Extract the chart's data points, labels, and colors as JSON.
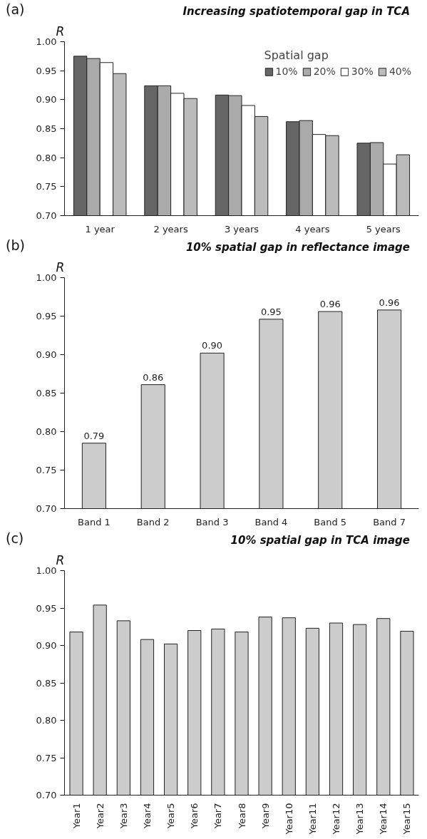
{
  "chart_data": [
    {
      "type": "bar",
      "title": "Increasing spatiotemporal gap in TCA",
      "ylabel": "R",
      "annotations": [
        "(a)"
      ],
      "legend_title": "Spatial gap",
      "legend": "top right",
      "categories": [
        "1 year",
        "2 years",
        "3 years",
        "4 years",
        "5 years"
      ],
      "series": [
        {
          "name": "10%",
          "color": "#666666",
          "values": [
            0.975,
            0.924,
            0.908,
            0.862,
            0.825
          ]
        },
        {
          "name": "20%",
          "color": "#aaaaaa",
          "values": [
            0.971,
            0.924,
            0.907,
            0.864,
            0.826
          ]
        },
        {
          "name": "30%",
          "color": "#ffffff",
          "values": [
            0.964,
            0.911,
            0.89,
            0.84,
            0.789
          ]
        },
        {
          "name": "40%",
          "color": "#bbbbbb",
          "values": [
            0.945,
            0.902,
            0.871,
            0.838,
            0.805
          ]
        }
      ],
      "ylim": [
        0.7,
        1.0
      ],
      "yticks": [
        {
          "value": 0.7,
          "label": "0.70"
        },
        {
          "value": 0.75,
          "label": "0.75"
        },
        {
          "value": 0.8,
          "label": "0.80"
        },
        {
          "value": 0.85,
          "label": "0.85"
        },
        {
          "value": 0.9,
          "label": "0.90"
        },
        {
          "value": 0.95,
          "label": "0.95"
        },
        {
          "value": 1.0,
          "label": "1.00"
        }
      ]
    },
    {
      "type": "bar",
      "title": "10%  spatial gap in reflectance image",
      "ylabel": "R",
      "annotations": [
        "(b)"
      ],
      "categories": [
        "Band 1",
        "Band 2",
        "Band 3",
        "Band 4",
        "Band 5",
        "Band 7"
      ],
      "series": [
        {
          "color": "#cccccc",
          "values": [
            0.785,
            0.861,
            0.902,
            0.946,
            0.956,
            0.958
          ],
          "value_labels": [
            "0.79",
            "0.86",
            "0.90",
            "0.95",
            "0.96",
            "0.96"
          ]
        }
      ],
      "ylim": [
        0.7,
        1.0
      ],
      "yticks": [
        {
          "value": 0.7,
          "label": "0.70"
        },
        {
          "value": 0.75,
          "label": "0.75"
        },
        {
          "value": 0.8,
          "label": "0.80"
        },
        {
          "value": 0.85,
          "label": "0.85"
        },
        {
          "value": 0.9,
          "label": "0.90"
        },
        {
          "value": 0.95,
          "label": "0.95"
        },
        {
          "value": 1.0,
          "label": "1.00"
        }
      ]
    },
    {
      "type": "bar",
      "title": "10% spatial gap in TCA image",
      "ylabel": "R",
      "annotations": [
        "(c)"
      ],
      "categories": [
        "Year1",
        "Year2",
        "Year3",
        "Year4",
        "Year5",
        "Year6",
        "Year7",
        "Year8",
        "Year9",
        "Year10",
        "Year11",
        "Year12",
        "Year13",
        "Year14",
        "Year15"
      ],
      "series": [
        {
          "color": "#cccccc",
          "values": [
            0.918,
            0.954,
            0.933,
            0.908,
            0.902,
            0.92,
            0.922,
            0.918,
            0.938,
            0.937,
            0.923,
            0.93,
            0.928,
            0.936,
            0.919
          ]
        }
      ],
      "ylim": [
        0.7,
        1.0
      ],
      "yticks": [
        {
          "value": 0.7,
          "label": "0.70"
        },
        {
          "value": 0.75,
          "label": "0.75"
        },
        {
          "value": 0.8,
          "label": "0.80"
        },
        {
          "value": 0.85,
          "label": "0.85"
        },
        {
          "value": 0.9,
          "label": "0.90"
        },
        {
          "value": 0.95,
          "label": "0.95"
        },
        {
          "value": 1.0,
          "label": "1.00"
        }
      ]
    }
  ]
}
